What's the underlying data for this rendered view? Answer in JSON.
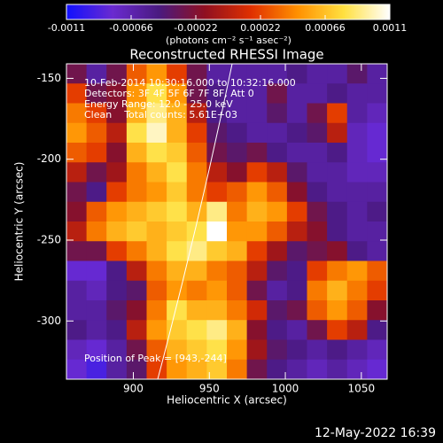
{
  "chart_data": {
    "type": "heatmap",
    "title": "Reconstructed RHESSI Image",
    "x_label": "Heliocentric X (arcsec)",
    "y_label": "Heliocentric Y (arcsec)",
    "colorbar_label": "(photons cm⁻² s⁻¹ asec⁻²)",
    "annotations": [
      "10-Feb-2014 10:30:16.000 to 10:32:16.000",
      "Detectors: 3F 4F 5F 6F 7F 8F, Att 0",
      "Energy Range: 12.0 - 25.0 keV",
      "Clean    Total counts: 5.61E+03",
      "Position of Peak = [943,-244]"
    ],
    "footer": "12-May-2022 16:39",
    "xlim": [
      856,
      1067
    ],
    "xticks": [
      900,
      950,
      1000,
      1050
    ],
    "ylim": [
      -336,
      -141
    ],
    "yticks": [
      -150,
      -200,
      -250,
      -300
    ],
    "clim": [
      -0.0011,
      0.0011
    ],
    "cticks": [
      -0.0011,
      -0.00066,
      -0.00022,
      0.00022,
      0.00066,
      0.0011
    ],
    "colormap": [
      "#1010ff",
      "#6a2ad0",
      "#4a1a80",
      "#901020",
      "#e03000",
      "#ff9000",
      "#ffe040",
      "#ffffff"
    ],
    "z": [
      [
        -0.0003,
        -0.0006,
        -0.0003,
        0.0003,
        0.0005,
        0.0002,
        -0.0003,
        -0.0006,
        -0.0006,
        -0.0006,
        -0.0006,
        -0.0005,
        -0.0006,
        -0.0006,
        -0.0004,
        -0.0006
      ],
      [
        0.0002,
        -0.0003,
        -0.0002,
        0.0005,
        0.0008,
        0.0005,
        -0.0003,
        -0.0005,
        -0.0006,
        -0.0006,
        -0.0003,
        -0.0006,
        -0.0006,
        -0.0005,
        -0.0006,
        -0.0006
      ],
      [
        0.0004,
        0.0002,
        -0.0002,
        0.0006,
        0.0009,
        0.0006,
        0,
        -0.0005,
        -0.0006,
        -0.0006,
        -0.0004,
        -0.0006,
        -0.0003,
        0.0002,
        -0.0006,
        -0.0007
      ],
      [
        0.0005,
        0.0003,
        0,
        0.0008,
        0.001,
        0.0006,
        0.0002,
        -0.0004,
        -0.0005,
        -0.0006,
        -0.0006,
        -0.0005,
        -0.0004,
        0,
        -0.0007,
        -0.0008
      ],
      [
        0.0003,
        0.0002,
        -0.0002,
        0.0006,
        0.0008,
        0.0007,
        0.0003,
        -0.0003,
        -0.0004,
        -0.0003,
        -0.0005,
        -0.0006,
        -0.0006,
        -0.0005,
        -0.0007,
        -0.0008
      ],
      [
        0,
        -0.0003,
        -0.0001,
        0.0004,
        0.0006,
        0.0008,
        0.0004,
        0,
        -0.0002,
        0.0002,
        0,
        -0.0004,
        -0.0006,
        -0.0006,
        -0.0007,
        -0.0007
      ],
      [
        -0.0003,
        -0.0005,
        0.0002,
        0.0004,
        0.0005,
        0.0007,
        0.0004,
        0.0002,
        0.0003,
        0.0005,
        0.0003,
        -0.0002,
        -0.0005,
        -0.0006,
        -0.0006,
        -0.0006
      ],
      [
        -0.0002,
        0.0003,
        0.0005,
        0.0006,
        0.0007,
        0.0008,
        0.0006,
        0.0009,
        0.0004,
        0.0006,
        0.0005,
        0.0002,
        -0.0003,
        -0.0005,
        -0.0006,
        -0.0005
      ],
      [
        0,
        0.0004,
        0.0006,
        0.0007,
        0.0006,
        0.0007,
        0.0008,
        0.0011,
        0.0005,
        0.0005,
        0.0003,
        0,
        -0.0002,
        -0.0005,
        -0.0006,
        -0.0006
      ],
      [
        -0.0003,
        -0.0003,
        0.0002,
        0.0004,
        0.0006,
        0.0008,
        0.0009,
        0.0007,
        0.0006,
        0.0002,
        -0.0001,
        -0.0004,
        -0.0003,
        -0.0002,
        -0.0005,
        -0.0006
      ],
      [
        -0.0008,
        -0.0008,
        -0.0005,
        0,
        0.0004,
        0.0006,
        0.0006,
        0.0004,
        0.0003,
        0,
        -0.0004,
        -0.0005,
        0.0002,
        0.0004,
        0.0005,
        0.0003
      ],
      [
        -0.0006,
        -0.0007,
        -0.0005,
        -0.0004,
        0.0003,
        0.0005,
        0.0004,
        0.0005,
        0.0003,
        -0.0003,
        -0.0006,
        -0.0005,
        0.0004,
        0.0006,
        0.0004,
        0.0002
      ],
      [
        -0.0006,
        -0.0006,
        -0.0004,
        -0.0002,
        0.0004,
        0.0008,
        0.0006,
        0.0006,
        0.0004,
        0.0001,
        -0.0004,
        -0.0003,
        0.0003,
        0.0005,
        0.0003,
        -0.0002
      ],
      [
        -0.0005,
        -0.0006,
        -0.0005,
        0,
        0.0005,
        0.0007,
        0.0008,
        0.0009,
        0.0006,
        -0.0002,
        -0.0005,
        -0.0006,
        -0.0003,
        0.0002,
        0,
        -0.0005
      ],
      [
        -0.0007,
        -0.0008,
        -0.0006,
        -0.0003,
        0.0003,
        0.0006,
        0.0007,
        0.0008,
        0.0005,
        -0.0001,
        -0.0004,
        -0.0005,
        -0.0006,
        -0.0005,
        -0.0006,
        -0.0007
      ],
      [
        -0.0008,
        -0.0009,
        -0.0006,
        -0.0004,
        0.0002,
        0.0005,
        0.0006,
        0.0007,
        0.0004,
        -0.0003,
        -0.0005,
        -0.0006,
        -0.0007,
        -0.0006,
        -0.0007,
        -0.0008
      ]
    ]
  }
}
